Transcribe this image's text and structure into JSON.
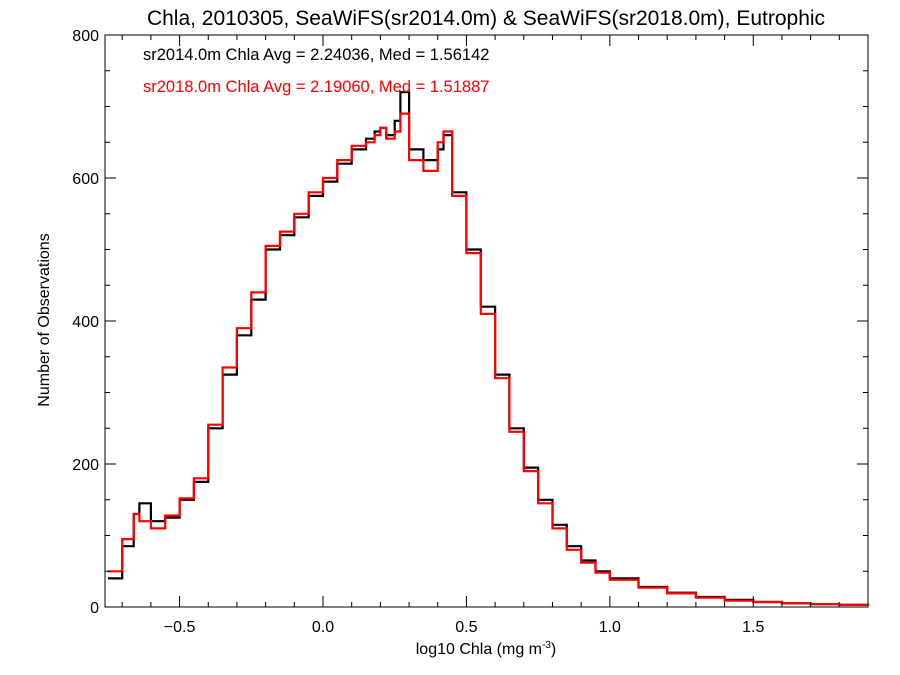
{
  "chart_data": {
    "type": "line",
    "title": "Chla, 2010305, SeaWiFS(sr2014.0m) & SeaWiFS(sr2018.0m), Eutrophic",
    "xlabel": "log10 Chla (mg m",
    "xlabel_sup": "-3",
    "xlabel_close": ")",
    "ylabel": "Number of Observations",
    "xlim": [
      -0.76,
      1.9
    ],
    "ylim": [
      0,
      800
    ],
    "xticks": [
      -0.5,
      0.0,
      0.5,
      1.0,
      1.5
    ],
    "xtick_labels": [
      "−0.5",
      "0.0",
      "0.5",
      "1.0",
      "1.5"
    ],
    "yticks": [
      0,
      200,
      400,
      600,
      800
    ],
    "ytick_labels": [
      "0",
      "200",
      "400",
      "600",
      "800"
    ],
    "annotations": [
      {
        "text": "sr2014.0m Chla Avg = 2.24036, Med = 1.56142",
        "color": "#000000"
      },
      {
        "text": "sr2018.0m Chla Avg = 2.19060, Med = 1.51887",
        "color": "#ff0000"
      }
    ],
    "series": [
      {
        "color": "#000000",
        "x": [
          -0.75,
          -0.7,
          -0.66,
          -0.64,
          -0.6,
          -0.55,
          -0.5,
          -0.45,
          -0.4,
          -0.35,
          -0.3,
          -0.25,
          -0.2,
          -0.15,
          -0.1,
          -0.05,
          0.0,
          0.05,
          0.1,
          0.15,
          0.18,
          0.2,
          0.22,
          0.25,
          0.27,
          0.3,
          0.35,
          0.4,
          0.42,
          0.45,
          0.5,
          0.55,
          0.6,
          0.65,
          0.7,
          0.75,
          0.8,
          0.85,
          0.9,
          0.95,
          1.0,
          1.1,
          1.2,
          1.3,
          1.4,
          1.5,
          1.6,
          1.7,
          1.8,
          1.9
        ],
        "y": [
          40,
          85,
          130,
          145,
          120,
          125,
          150,
          175,
          250,
          325,
          380,
          430,
          500,
          520,
          545,
          575,
          595,
          620,
          640,
          655,
          665,
          670,
          660,
          680,
          720,
          640,
          625,
          640,
          660,
          580,
          500,
          420,
          325,
          250,
          195,
          150,
          115,
          85,
          65,
          50,
          40,
          28,
          20,
          14,
          10,
          7,
          5,
          4,
          3,
          2
        ]
      },
      {
        "color": "#ff0000",
        "x": [
          -0.75,
          -0.7,
          -0.66,
          -0.64,
          -0.6,
          -0.55,
          -0.5,
          -0.45,
          -0.4,
          -0.35,
          -0.3,
          -0.25,
          -0.2,
          -0.15,
          -0.1,
          -0.05,
          0.0,
          0.05,
          0.1,
          0.15,
          0.18,
          0.2,
          0.22,
          0.25,
          0.27,
          0.3,
          0.35,
          0.4,
          0.42,
          0.45,
          0.5,
          0.55,
          0.6,
          0.65,
          0.7,
          0.75,
          0.8,
          0.85,
          0.9,
          0.95,
          1.0,
          1.1,
          1.2,
          1.3,
          1.4,
          1.5,
          1.6,
          1.7,
          1.8,
          1.9
        ],
        "y": [
          50,
          95,
          130,
          120,
          110,
          128,
          152,
          180,
          255,
          335,
          390,
          440,
          505,
          525,
          550,
          580,
          600,
          625,
          645,
          650,
          660,
          670,
          655,
          665,
          690,
          625,
          610,
          650,
          665,
          575,
          495,
          410,
          320,
          245,
          190,
          145,
          110,
          80,
          62,
          48,
          38,
          27,
          19,
          13,
          9,
          7,
          5,
          4,
          3,
          2
        ]
      }
    ]
  }
}
